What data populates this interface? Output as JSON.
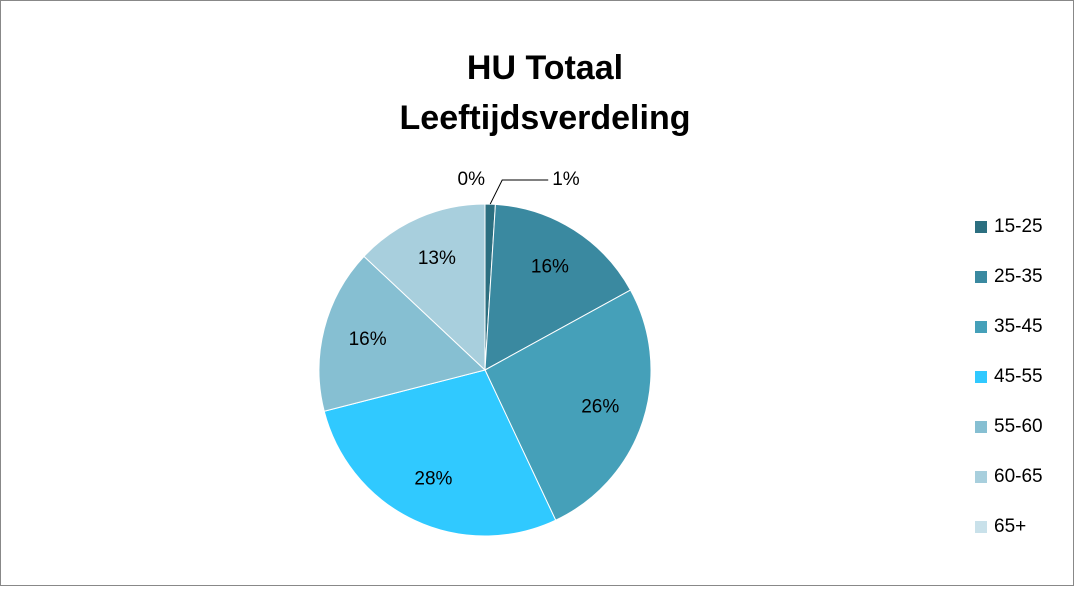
{
  "chart_data": {
    "type": "pie",
    "title": [
      "HU Totaal",
      "Leeftijdsverdeling"
    ],
    "categories": [
      "15-25",
      "25-35",
      "35-45",
      "45-55",
      "55-60",
      "60-65",
      "65+"
    ],
    "values": [
      1,
      16,
      26,
      28,
      16,
      13,
      0
    ],
    "value_labels": [
      "1%",
      "16%",
      "26%",
      "28%",
      "16%",
      "13%",
      "0%"
    ],
    "colors": [
      "#2c6f80",
      "#3a89a0",
      "#45a0b9",
      "#30c9ff",
      "#86bfd2",
      "#a8cfdd",
      "#c9e1ea"
    ],
    "legend": "right"
  }
}
